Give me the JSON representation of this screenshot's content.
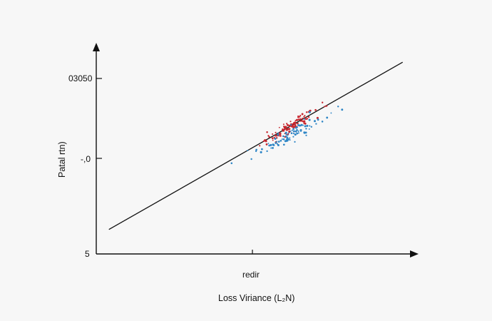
{
  "chart_data": {
    "type": "scatter",
    "title": "",
    "xlabel": "Loss Viriance (L₂N)",
    "ylabel": "Patal rtn)",
    "x_tick_label": "redir",
    "y_tick_labels": [
      "03050",
      "-,0",
      "5"
    ],
    "grid": false,
    "legend": "none",
    "colors": {
      "series_a": "#c8262e",
      "series_b": "#2f86c6",
      "line": "#111111",
      "axis": "#111111"
    },
    "trend_line": {
      "x": [
        0.04,
        0.97
      ],
      "y": [
        0.12,
        0.94
      ]
    },
    "series": [
      {
        "color_key": "series_a",
        "center": [
          0.61,
          0.62
        ],
        "spread": [
          0.045,
          0.03
        ],
        "count": 110
      },
      {
        "color_key": "series_b",
        "center": [
          0.62,
          0.59
        ],
        "spread": [
          0.055,
          0.04
        ],
        "count": 90
      }
    ],
    "xlim": [
      0,
      1
    ],
    "ylim": [
      0,
      1
    ]
  }
}
